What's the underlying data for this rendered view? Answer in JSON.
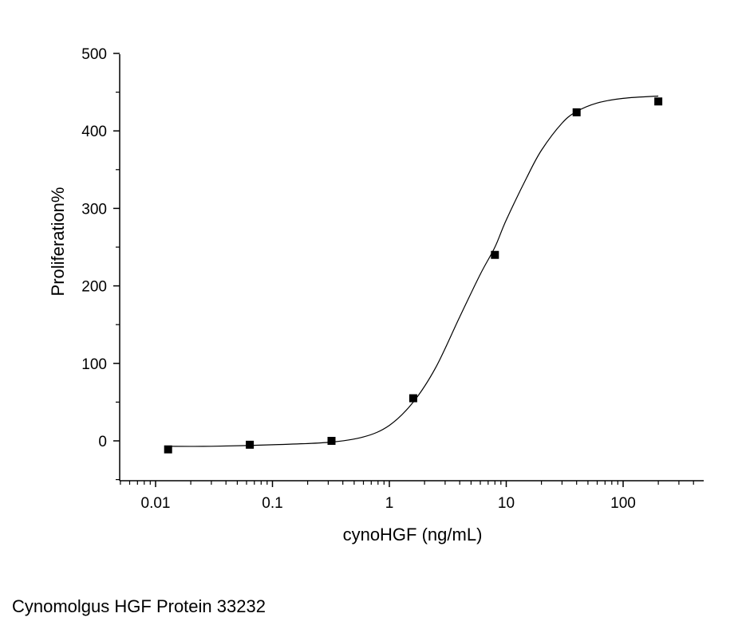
{
  "caption": "Cynomolgus HGF Protein 33232",
  "chart_data": {
    "type": "scatter",
    "title": "",
    "xlabel": "cynoHGF (ng/mL)",
    "ylabel": "Proliferation%",
    "xscale": "log",
    "xlim": [
      0.005,
      400
    ],
    "ylim": [
      -50,
      500
    ],
    "xticks": [
      0.01,
      0.1,
      1,
      10,
      100
    ],
    "xtick_labels": [
      "0.01",
      "0.1",
      "1",
      "10",
      "100"
    ],
    "yticks": [
      0,
      100,
      200,
      300,
      400,
      500
    ],
    "ytick_labels": [
      "0",
      "100",
      "200",
      "300",
      "400",
      "500"
    ],
    "grid": false,
    "legend": false,
    "series": [
      {
        "marker": "square",
        "color": "#000000",
        "x": [
          0.0128,
          0.064,
          0.32,
          1.6,
          8,
          40,
          200
        ],
        "y": [
          -11,
          -5,
          0,
          55,
          240,
          424,
          438
        ]
      }
    ],
    "fit_curve": {
      "color": "#000000",
      "x": [
        0.0128,
        0.03,
        0.1,
        0.3,
        0.6,
        1,
        1.6,
        2.5,
        4,
        6,
        8,
        10,
        15,
        20,
        30,
        40,
        60,
        100,
        200
      ],
      "y": [
        -7,
        -7,
        -5,
        -2,
        5,
        20,
        50,
        95,
        160,
        215,
        250,
        285,
        340,
        375,
        410,
        425,
        436,
        442,
        445
      ]
    }
  }
}
